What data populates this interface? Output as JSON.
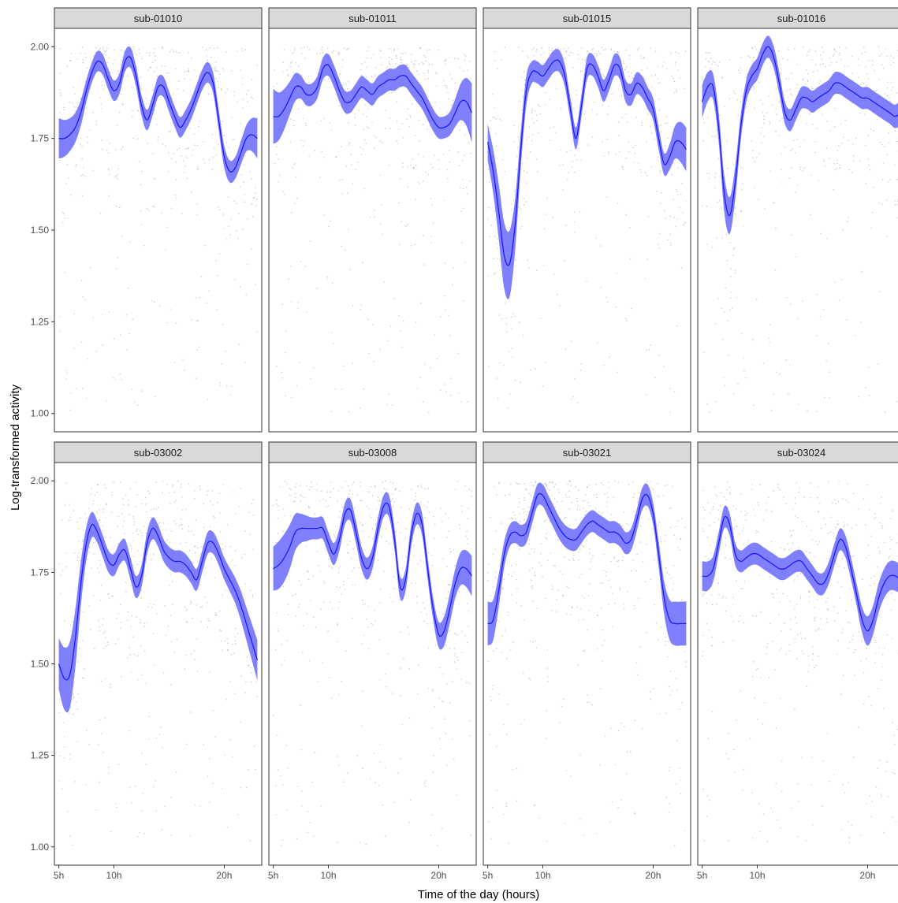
{
  "chart_data": {
    "type": "line",
    "xlabel": "Time of the day (hours)",
    "ylabel": "Log-transformed activity",
    "xlim": [
      4.6,
      23.4
    ],
    "ylim": [
      0.95,
      2.05
    ],
    "x_ticks": [
      5,
      10,
      20
    ],
    "x_tick_labels": [
      "5h",
      "10h",
      "20h"
    ],
    "y_ticks": [
      1.0,
      1.25,
      1.5,
      1.75,
      2.0
    ],
    "y_tick_labels": [
      "1.00",
      "1.25",
      "1.50",
      "1.75",
      "2.00"
    ],
    "grid": false,
    "legend": "none",
    "layout": "2 rows x 4 facets",
    "colors": {
      "line": "#1a1aff",
      "ribbon": "#6a6aff",
      "points": "#9a9a9a",
      "strip_fill": "#d9d9d9",
      "strip_border": "#333333"
    },
    "facets": [
      {
        "title": "sub-01010",
        "x": [
          5,
          5.5,
          6,
          6.5,
          7,
          7.5,
          8,
          8.5,
          9,
          9.5,
          10,
          10.5,
          11,
          11.5,
          12,
          12.5,
          13,
          13.5,
          14,
          14.5,
          15,
          15.5,
          16,
          16.5,
          17,
          17.5,
          18,
          18.5,
          19,
          19.5,
          20,
          20.5,
          21,
          21.5,
          22,
          22.5,
          23
        ],
        "y": [
          1.75,
          1.75,
          1.76,
          1.78,
          1.82,
          1.88,
          1.93,
          1.96,
          1.95,
          1.91,
          1.88,
          1.9,
          1.96,
          1.97,
          1.92,
          1.84,
          1.8,
          1.84,
          1.89,
          1.89,
          1.85,
          1.81,
          1.78,
          1.8,
          1.83,
          1.87,
          1.91,
          1.93,
          1.9,
          1.8,
          1.7,
          1.66,
          1.67,
          1.71,
          1.75,
          1.76,
          1.75
        ],
        "band": [
          0.055,
          0.05,
          0.045,
          0.04,
          0.035,
          0.03,
          0.028,
          0.028,
          0.028,
          0.028,
          0.028,
          0.028,
          0.028,
          0.028,
          0.028,
          0.028,
          0.028,
          0.028,
          0.028,
          0.028,
          0.028,
          0.028,
          0.028,
          0.028,
          0.028,
          0.028,
          0.028,
          0.028,
          0.028,
          0.028,
          0.03,
          0.03,
          0.03,
          0.032,
          0.036,
          0.045,
          0.055
        ]
      },
      {
        "title": "sub-01011",
        "x": [
          5,
          5.5,
          6,
          6.5,
          7,
          7.5,
          8,
          8.5,
          9,
          9.5,
          10,
          10.5,
          11,
          11.5,
          12,
          12.5,
          13,
          13.5,
          14,
          14.5,
          15,
          15.5,
          16,
          16.5,
          17,
          17.5,
          18,
          18.5,
          19,
          19.5,
          20,
          20.5,
          21,
          21.5,
          22,
          22.5,
          23
        ],
        "y": [
          1.81,
          1.81,
          1.83,
          1.86,
          1.89,
          1.89,
          1.87,
          1.87,
          1.89,
          1.94,
          1.95,
          1.92,
          1.88,
          1.85,
          1.85,
          1.87,
          1.89,
          1.88,
          1.87,
          1.89,
          1.9,
          1.91,
          1.91,
          1.92,
          1.92,
          1.9,
          1.88,
          1.86,
          1.83,
          1.8,
          1.78,
          1.78,
          1.79,
          1.82,
          1.85,
          1.85,
          1.82
        ],
        "band": [
          0.075,
          0.065,
          0.055,
          0.045,
          0.038,
          0.032,
          0.03,
          0.03,
          0.03,
          0.03,
          0.03,
          0.03,
          0.03,
          0.03,
          0.03,
          0.03,
          0.03,
          0.03,
          0.03,
          0.03,
          0.03,
          0.03,
          0.03,
          0.03,
          0.03,
          0.03,
          0.03,
          0.03,
          0.03,
          0.03,
          0.03,
          0.03,
          0.032,
          0.038,
          0.05,
          0.065,
          0.08
        ]
      },
      {
        "title": "sub-01015",
        "x": [
          5,
          5.5,
          6,
          6.5,
          7,
          7.5,
          8,
          8.5,
          9,
          9.5,
          10,
          10.5,
          11,
          11.5,
          12,
          12.5,
          13,
          13.5,
          14,
          14.5,
          15,
          15.5,
          16,
          16.5,
          17,
          17.5,
          18,
          18.5,
          19,
          19.5,
          20,
          20.5,
          21,
          21.5,
          22,
          22.5,
          23
        ],
        "y": [
          1.74,
          1.66,
          1.55,
          1.43,
          1.41,
          1.52,
          1.72,
          1.88,
          1.93,
          1.93,
          1.92,
          1.94,
          1.96,
          1.96,
          1.92,
          1.83,
          1.75,
          1.84,
          1.94,
          1.95,
          1.92,
          1.88,
          1.91,
          1.95,
          1.94,
          1.88,
          1.87,
          1.9,
          1.89,
          1.86,
          1.83,
          1.75,
          1.68,
          1.7,
          1.74,
          1.74,
          1.72
        ],
        "band": [
          0.05,
          0.06,
          0.075,
          0.09,
          0.09,
          0.07,
          0.05,
          0.04,
          0.03,
          0.03,
          0.03,
          0.03,
          0.03,
          0.03,
          0.03,
          0.03,
          0.03,
          0.03,
          0.03,
          0.03,
          0.03,
          0.03,
          0.03,
          0.03,
          0.03,
          0.03,
          0.03,
          0.03,
          0.03,
          0.03,
          0.03,
          0.03,
          0.03,
          0.035,
          0.045,
          0.055,
          0.06
        ]
      },
      {
        "title": "sub-01016",
        "x": [
          5,
          5.5,
          6,
          6.5,
          7,
          7.5,
          8,
          8.5,
          9,
          9.5,
          10,
          10.5,
          11,
          11.5,
          12,
          12.5,
          13,
          13.5,
          14,
          14.5,
          15,
          15.5,
          16,
          16.5,
          17,
          17.5,
          18,
          18.5,
          19,
          19.5,
          20,
          20.5,
          21,
          21.5,
          22,
          22.5,
          23
        ],
        "y": [
          1.85,
          1.89,
          1.89,
          1.78,
          1.6,
          1.54,
          1.63,
          1.78,
          1.88,
          1.92,
          1.94,
          1.98,
          2.0,
          1.97,
          1.9,
          1.82,
          1.8,
          1.83,
          1.86,
          1.86,
          1.85,
          1.86,
          1.87,
          1.88,
          1.9,
          1.9,
          1.89,
          1.88,
          1.87,
          1.86,
          1.86,
          1.85,
          1.84,
          1.83,
          1.82,
          1.81,
          1.82
        ],
        "band": [
          0.045,
          0.04,
          0.035,
          0.04,
          0.05,
          0.05,
          0.045,
          0.035,
          0.03,
          0.03,
          0.03,
          0.03,
          0.03,
          0.03,
          0.03,
          0.03,
          0.03,
          0.03,
          0.03,
          0.03,
          0.03,
          0.03,
          0.03,
          0.03,
          0.03,
          0.03,
          0.03,
          0.03,
          0.03,
          0.03,
          0.03,
          0.03,
          0.03,
          0.03,
          0.03,
          0.032,
          0.035
        ]
      },
      {
        "title": "sub-03002",
        "x": [
          5,
          5.5,
          6,
          6.5,
          7,
          7.5,
          8,
          8.5,
          9,
          9.5,
          10,
          10.5,
          11,
          11.5,
          12,
          12.5,
          13,
          13.5,
          14,
          14.5,
          15,
          15.5,
          16,
          16.5,
          17,
          17.5,
          18,
          18.5,
          19,
          19.5,
          20,
          20.5,
          21,
          21.5,
          22,
          22.5,
          23
        ],
        "y": [
          1.5,
          1.46,
          1.47,
          1.57,
          1.72,
          1.83,
          1.88,
          1.86,
          1.82,
          1.78,
          1.77,
          1.8,
          1.81,
          1.76,
          1.71,
          1.74,
          1.83,
          1.87,
          1.85,
          1.81,
          1.79,
          1.78,
          1.78,
          1.77,
          1.75,
          1.73,
          1.78,
          1.83,
          1.83,
          1.8,
          1.76,
          1.73,
          1.7,
          1.66,
          1.61,
          1.56,
          1.51
        ],
        "band": [
          0.07,
          0.085,
          0.09,
          0.08,
          0.06,
          0.045,
          0.035,
          0.03,
          0.03,
          0.03,
          0.03,
          0.03,
          0.03,
          0.03,
          0.03,
          0.03,
          0.03,
          0.03,
          0.03,
          0.03,
          0.03,
          0.03,
          0.03,
          0.03,
          0.03,
          0.03,
          0.03,
          0.03,
          0.03,
          0.03,
          0.03,
          0.032,
          0.035,
          0.04,
          0.045,
          0.05,
          0.055
        ]
      },
      {
        "title": "sub-03008",
        "x": [
          5,
          5.5,
          6,
          6.5,
          7,
          7.5,
          8,
          8.5,
          9,
          9.5,
          10,
          10.5,
          11,
          11.5,
          12,
          12.5,
          13,
          13.5,
          14,
          14.5,
          15,
          15.5,
          16,
          16.5,
          17,
          17.5,
          18,
          18.5,
          19,
          19.5,
          20,
          20.5,
          21,
          21.5,
          22,
          22.5,
          23
        ],
        "y": [
          1.76,
          1.77,
          1.79,
          1.82,
          1.86,
          1.87,
          1.87,
          1.87,
          1.87,
          1.87,
          1.83,
          1.8,
          1.84,
          1.91,
          1.92,
          1.86,
          1.79,
          1.76,
          1.79,
          1.87,
          1.93,
          1.93,
          1.84,
          1.71,
          1.73,
          1.85,
          1.91,
          1.88,
          1.76,
          1.65,
          1.58,
          1.59,
          1.65,
          1.72,
          1.76,
          1.76,
          1.74
        ],
        "band": [
          0.06,
          0.065,
          0.065,
          0.06,
          0.05,
          0.04,
          0.035,
          0.03,
          0.03,
          0.03,
          0.03,
          0.03,
          0.03,
          0.03,
          0.03,
          0.03,
          0.03,
          0.03,
          0.03,
          0.03,
          0.03,
          0.03,
          0.03,
          0.03,
          0.03,
          0.03,
          0.03,
          0.03,
          0.03,
          0.03,
          0.035,
          0.04,
          0.04,
          0.04,
          0.045,
          0.05,
          0.055
        ]
      },
      {
        "title": "sub-03021",
        "x": [
          5,
          5.5,
          6,
          6.5,
          7,
          7.5,
          8,
          8.5,
          9,
          9.5,
          10,
          10.5,
          11,
          11.5,
          12,
          12.5,
          13,
          13.5,
          14,
          14.5,
          15,
          15.5,
          16,
          16.5,
          17,
          17.5,
          18,
          18.5,
          19,
          19.5,
          20,
          20.5,
          21,
          21.5,
          22,
          22.5,
          23
        ],
        "y": [
          1.61,
          1.62,
          1.7,
          1.8,
          1.85,
          1.86,
          1.85,
          1.86,
          1.91,
          1.96,
          1.96,
          1.93,
          1.9,
          1.87,
          1.85,
          1.84,
          1.84,
          1.86,
          1.88,
          1.89,
          1.88,
          1.87,
          1.86,
          1.86,
          1.85,
          1.83,
          1.84,
          1.89,
          1.95,
          1.96,
          1.91,
          1.8,
          1.68,
          1.62,
          1.61,
          1.61,
          1.61
        ],
        "band": [
          0.06,
          0.055,
          0.045,
          0.035,
          0.03,
          0.03,
          0.03,
          0.03,
          0.03,
          0.03,
          0.03,
          0.03,
          0.03,
          0.03,
          0.03,
          0.03,
          0.03,
          0.03,
          0.03,
          0.03,
          0.03,
          0.03,
          0.03,
          0.03,
          0.03,
          0.03,
          0.03,
          0.03,
          0.03,
          0.03,
          0.03,
          0.035,
          0.045,
          0.055,
          0.06,
          0.06,
          0.06
        ]
      },
      {
        "title": "sub-03024",
        "x": [
          5,
          5.5,
          6,
          6.5,
          7,
          7.5,
          8,
          8.5,
          9,
          9.5,
          10,
          10.5,
          11,
          11.5,
          12,
          12.5,
          13,
          13.5,
          14,
          14.5,
          15,
          15.5,
          16,
          16.5,
          17,
          17.5,
          18,
          18.5,
          19,
          19.5,
          20,
          20.5,
          21,
          21.5,
          22,
          22.5,
          23
        ],
        "y": [
          1.74,
          1.74,
          1.76,
          1.83,
          1.9,
          1.88,
          1.8,
          1.78,
          1.79,
          1.8,
          1.8,
          1.79,
          1.78,
          1.77,
          1.76,
          1.76,
          1.77,
          1.78,
          1.78,
          1.76,
          1.74,
          1.72,
          1.72,
          1.75,
          1.8,
          1.84,
          1.82,
          1.76,
          1.69,
          1.62,
          1.59,
          1.62,
          1.68,
          1.72,
          1.74,
          1.74,
          1.73
        ],
        "band": [
          0.04,
          0.04,
          0.035,
          0.03,
          0.03,
          0.03,
          0.03,
          0.03,
          0.03,
          0.03,
          0.03,
          0.03,
          0.03,
          0.03,
          0.03,
          0.03,
          0.03,
          0.03,
          0.03,
          0.03,
          0.03,
          0.03,
          0.03,
          0.03,
          0.03,
          0.03,
          0.03,
          0.03,
          0.03,
          0.035,
          0.04,
          0.04,
          0.04,
          0.04,
          0.04,
          0.04,
          0.04
        ]
      }
    ]
  }
}
